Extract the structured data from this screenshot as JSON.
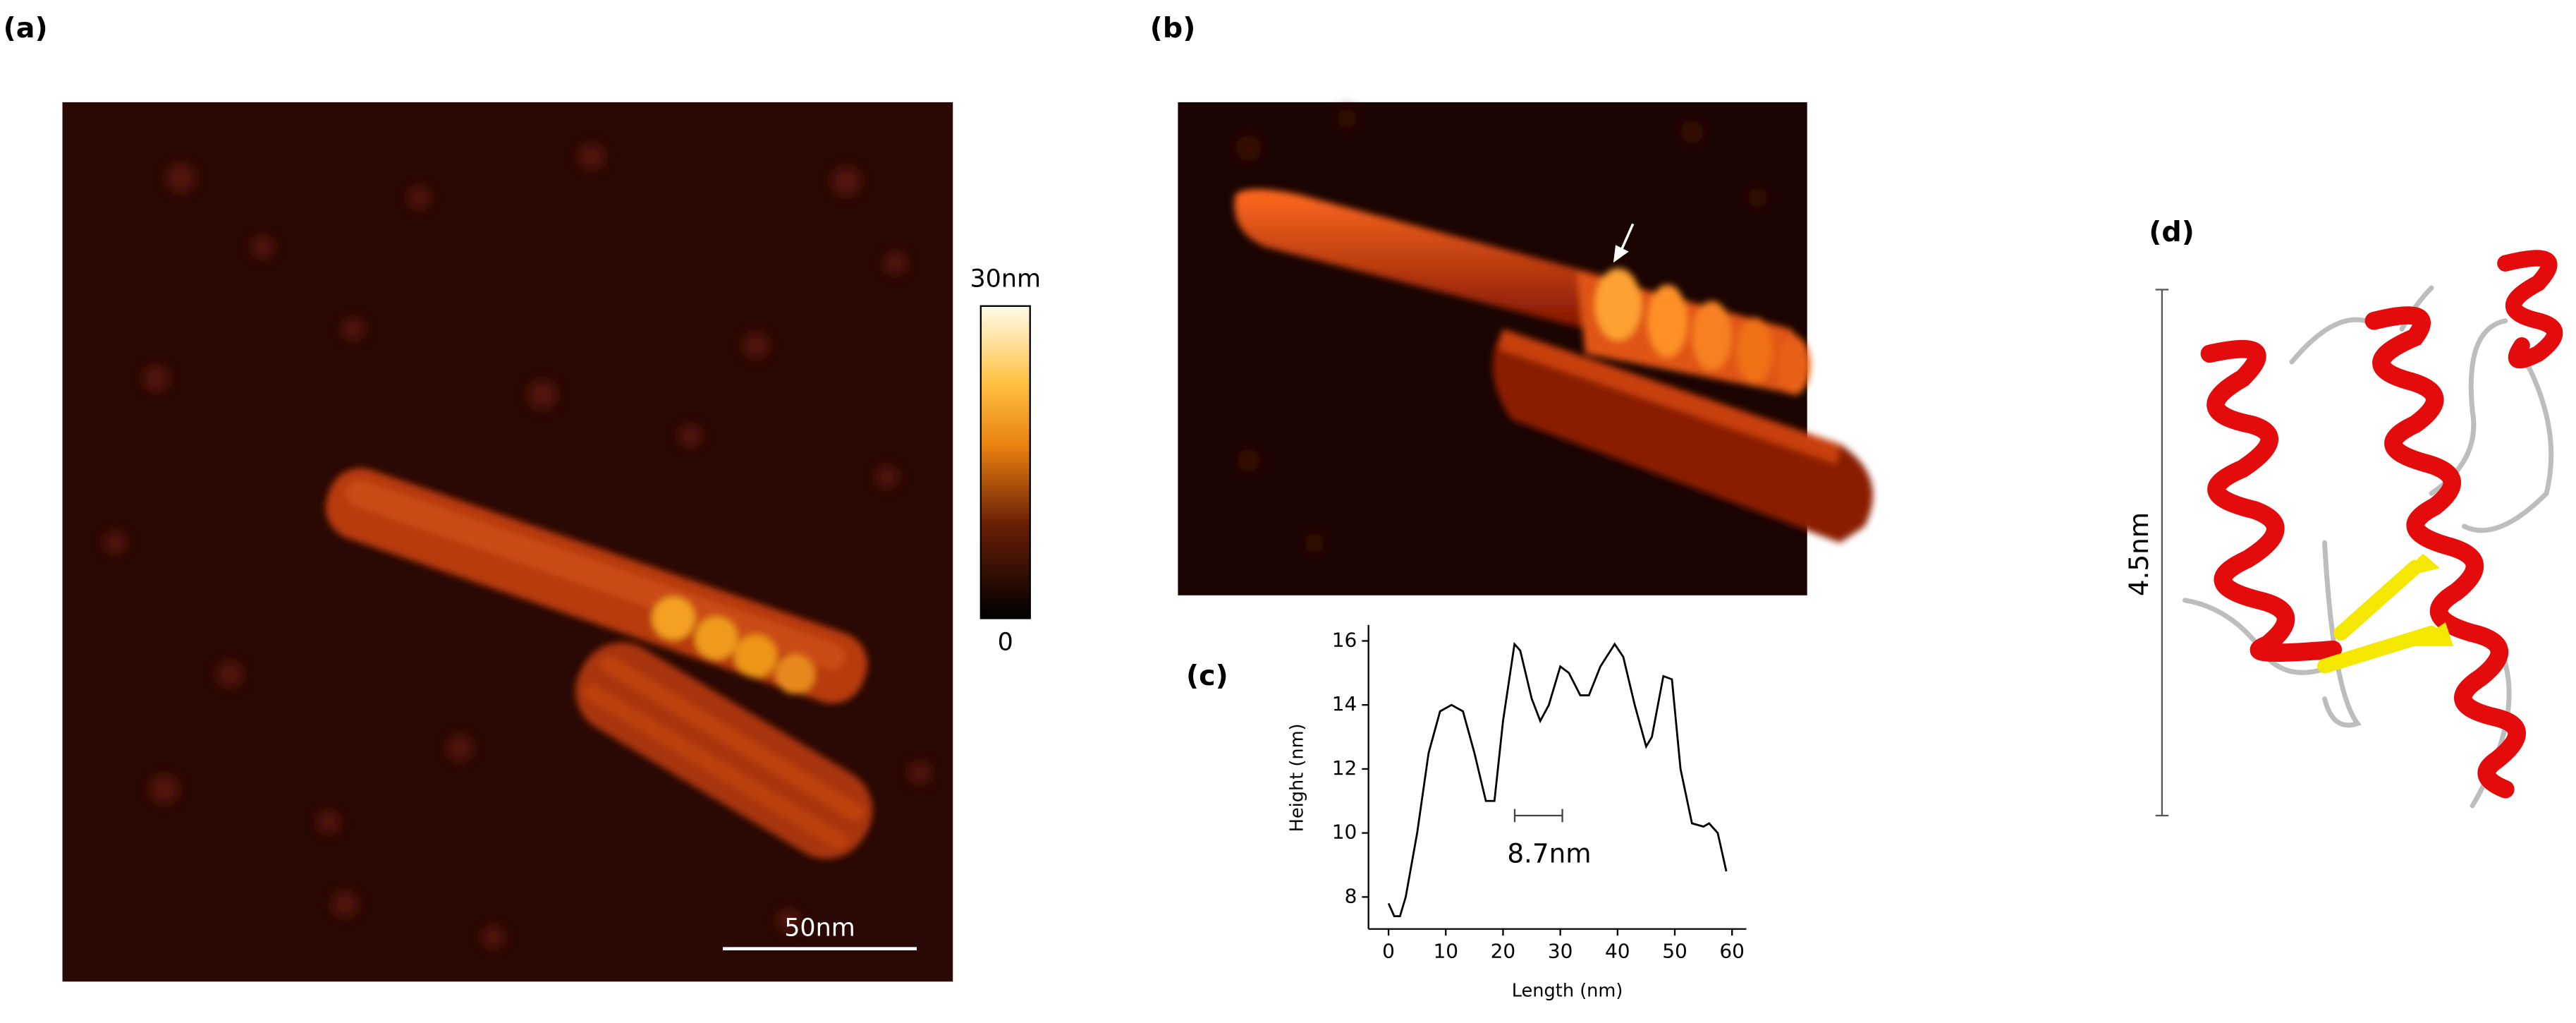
{
  "panels": {
    "a": {
      "label": "(a)",
      "colorbar_max": "30nm",
      "colorbar_min": "0",
      "scale_bar": "50nm"
    },
    "b": {
      "label": "(b)"
    },
    "d": {
      "label": "(d)",
      "scale_bar": "4.5nm"
    }
  },
  "chart_data": {
    "type": "line",
    "panel_label": "(c)",
    "x_label": "Length (nm)",
    "y_label": "Height (nm)",
    "annotation": "8.7nm",
    "color": "#000000",
    "x": [
      0,
      1,
      2,
      3,
      5,
      7,
      9,
      11,
      13,
      15,
      17,
      18.5,
      20,
      22,
      23,
      25,
      26.5,
      28,
      30,
      31.5,
      33.5,
      35,
      37,
      39.5,
      41,
      43,
      45,
      46,
      48,
      49.5,
      51,
      53,
      55,
      56,
      57.5,
      59
    ],
    "values": [
      7.8,
      7.4,
      7.4,
      8.0,
      10.0,
      12.5,
      13.8,
      14.0,
      13.8,
      12.5,
      11.0,
      11.0,
      13.5,
      15.9,
      15.7,
      14.2,
      13.5,
      14.0,
      15.2,
      15.0,
      14.3,
      14.3,
      15.2,
      15.9,
      15.5,
      14.0,
      12.7,
      13.0,
      14.9,
      14.8,
      12.0,
      10.3,
      10.2,
      10.3,
      10.0,
      8.8
    ],
    "xlim": [
      -3.5,
      62.5
    ],
    "ylim": [
      7,
      16.5
    ],
    "xticks": [
      0,
      10,
      20,
      30,
      40,
      50,
      60
    ],
    "yticks": [
      8,
      10,
      12,
      14,
      16
    ]
  }
}
